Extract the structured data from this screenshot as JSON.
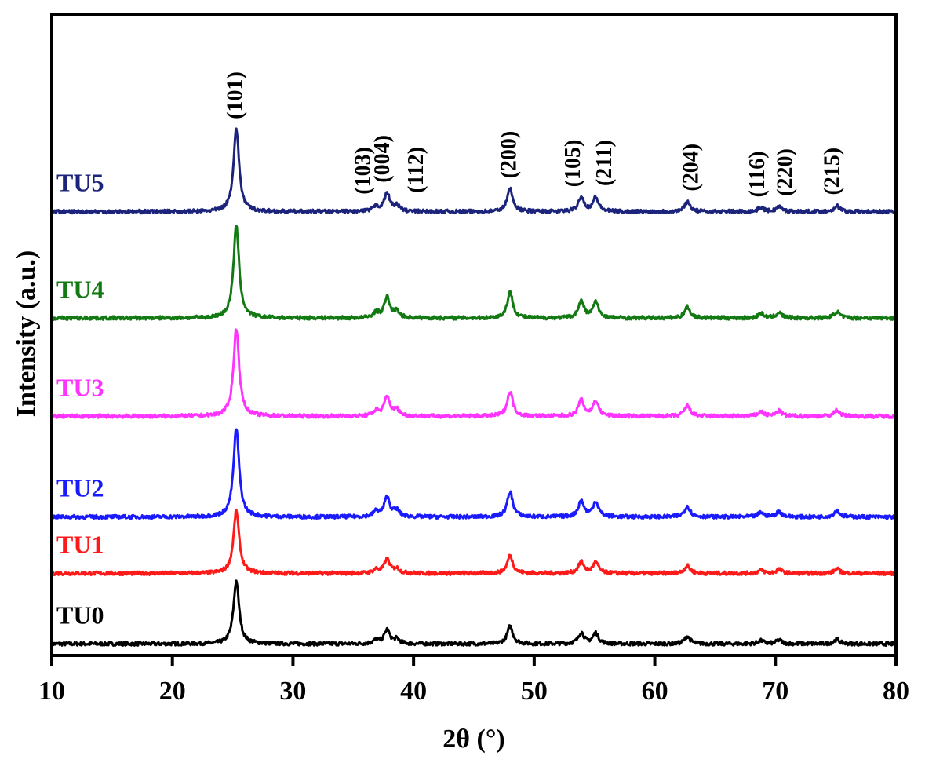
{
  "chart_data": {
    "type": "line",
    "title": "",
    "xlabel": "2θ (°)",
    "ylabel": "Intensity (a.u.)",
    "xlim": [
      10,
      80
    ],
    "ylim": [
      0,
      100
    ],
    "xticks": [
      10,
      20,
      30,
      40,
      50,
      60,
      70,
      80
    ],
    "xtick_labels": [
      "10",
      "20",
      "30",
      "40",
      "50",
      "60",
      "70",
      "80"
    ],
    "grid": false,
    "legend": "inline labels at left of each trace",
    "peaks": [
      {
        "two_theta": 25.3,
        "rel": 1.0
      },
      {
        "two_theta": 36.9,
        "rel": 0.06
      },
      {
        "two_theta": 37.8,
        "rel": 0.22
      },
      {
        "two_theta": 38.6,
        "rel": 0.07
      },
      {
        "two_theta": 48.0,
        "rel": 0.28
      },
      {
        "two_theta": 53.9,
        "rel": 0.18
      },
      {
        "two_theta": 55.1,
        "rel": 0.17
      },
      {
        "two_theta": 62.7,
        "rel": 0.12
      },
      {
        "two_theta": 68.8,
        "rel": 0.05
      },
      {
        "two_theta": 70.3,
        "rel": 0.06
      },
      {
        "two_theta": 75.1,
        "rel": 0.07
      }
    ],
    "series": [
      {
        "name": "TU0",
        "color": "#000000",
        "baseline": 1.8,
        "peak_height": 9.8
      },
      {
        "name": "TU1",
        "color": "#ff1a1a",
        "baseline": 12.8,
        "peak_height": 9.8
      },
      {
        "name": "TU2",
        "color": "#1a1aff",
        "baseline": 21.6,
        "peak_height": 13.8
      },
      {
        "name": "TU3",
        "color": "#ff33ff",
        "baseline": 37.3,
        "peak_height": 13.7
      },
      {
        "name": "TU4",
        "color": "#137a13",
        "baseline": 52.6,
        "peak_height": 14.4
      },
      {
        "name": "TU5",
        "color": "#1c237a",
        "baseline": 69.2,
        "peak_height": 12.9
      }
    ],
    "annotations": [
      {
        "text": "(101)",
        "x": 25.2,
        "peak": 25.3
      },
      {
        "text": "(103)",
        "x": 35.8,
        "peak": 36.9
      },
      {
        "text": "(004)",
        "x": 37.4,
        "peak": 37.8
      },
      {
        "text": "(112)",
        "x": 40.2,
        "peak": 38.6
      },
      {
        "text": "(200)",
        "x": 47.9,
        "peak": 48.0
      },
      {
        "text": "(105)",
        "x": 53.2,
        "peak": 53.9
      },
      {
        "text": "(211)",
        "x": 55.8,
        "peak": 55.1
      },
      {
        "text": "(204)",
        "x": 63.0,
        "peak": 62.7
      },
      {
        "text": "(116)",
        "x": 68.5,
        "peak": 68.8
      },
      {
        "text": "(220)",
        "x": 70.8,
        "peak": 70.3
      },
      {
        "text": "(215)",
        "x": 74.7,
        "peak": 75.1
      }
    ]
  }
}
